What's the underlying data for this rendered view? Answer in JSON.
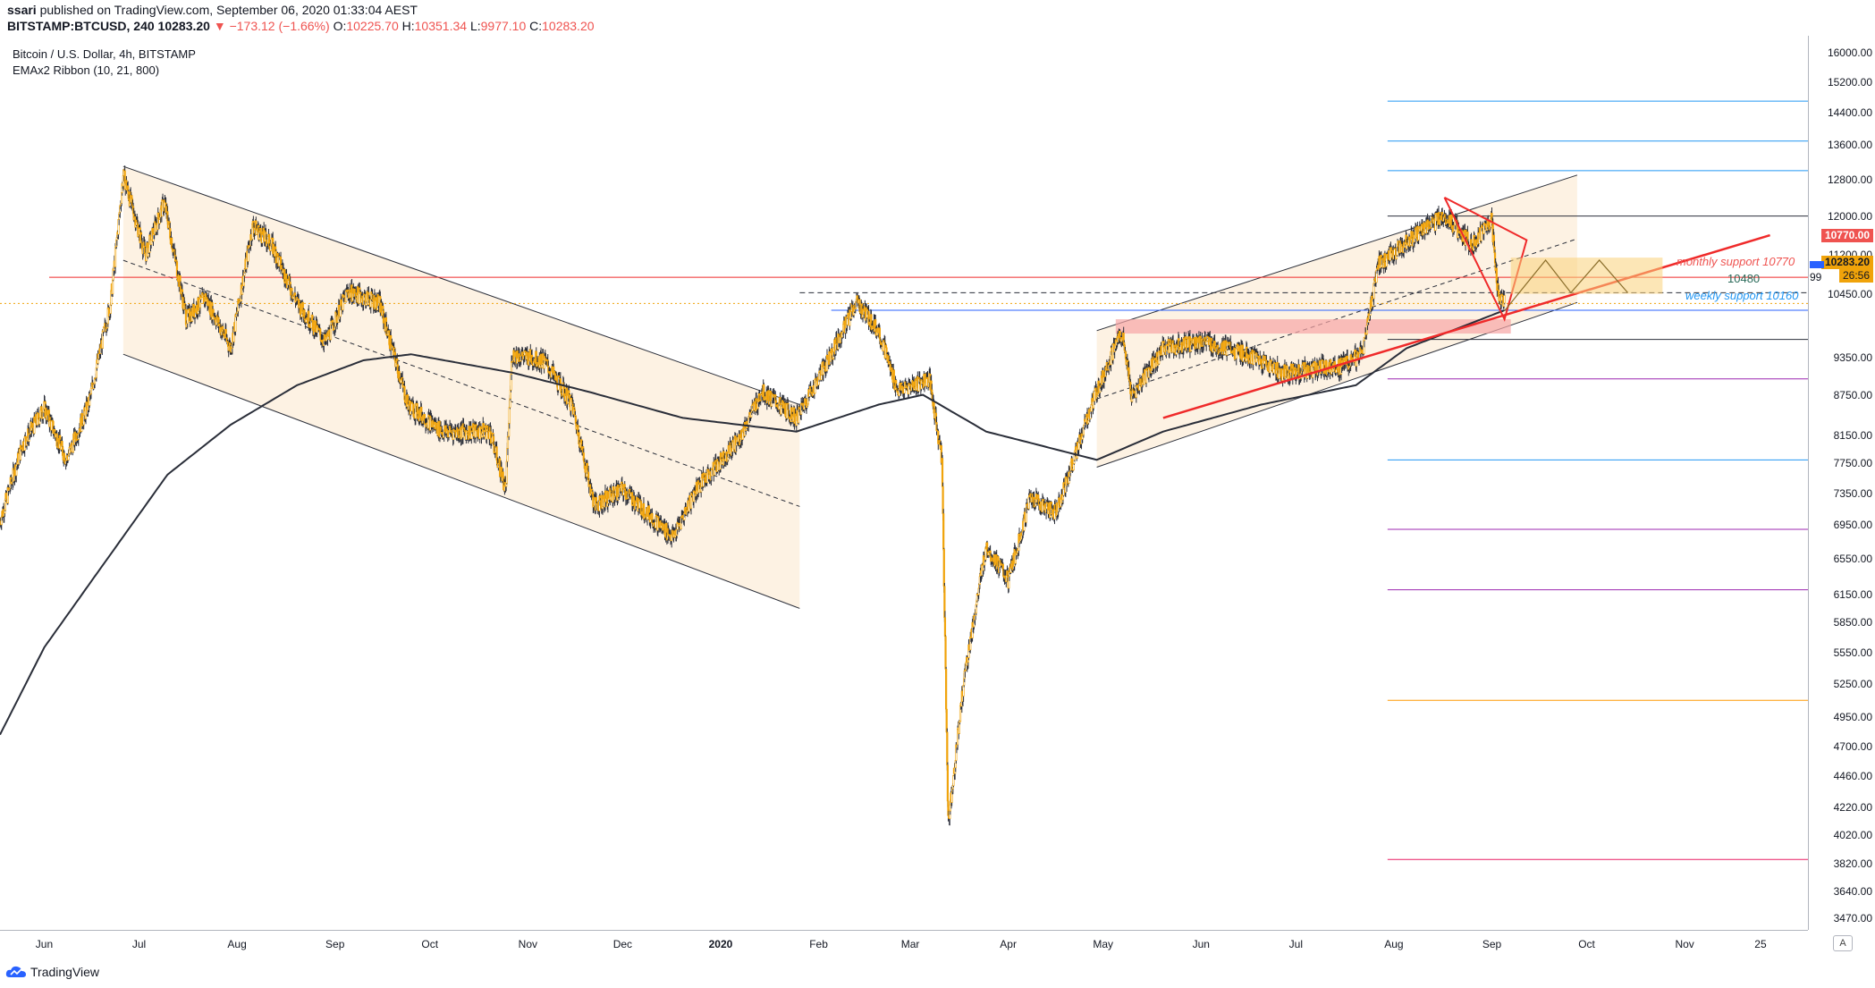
{
  "header": {
    "publisher": "ssari",
    "published_text": "published on TradingView.com, September 06, 2020 01:33:04 AEST",
    "symbol": "BITSTAMP:BTCUSD, 240",
    "last": "10283.20",
    "change": "▼ −173.12 (−1.66%)",
    "open_label": "O:",
    "open": "10225.70",
    "high_label": "H:",
    "high": "10351.34",
    "low_label": "L:",
    "low": "9977.10",
    "close_label": "C:",
    "close": "10283.20"
  },
  "legend": {
    "title": "Bitcoin / U.S. Dollar, 4h, BITSTAMP",
    "indicator": "EMAx2 Ribbon (10, 21, 800)"
  },
  "footer": {
    "brand": "TradingView",
    "auto_button": "A"
  },
  "price_tags": {
    "monthly": "10770.00",
    "last": "10283.20",
    "countdown": "26:56",
    "partial": "99"
  },
  "annotations": {
    "monthly_support": "monthly support 10770",
    "level_10480": "10480",
    "weekly_support": "weekly support 10160"
  },
  "colors": {
    "candle": "#f0a30a",
    "wick": "#2a2e39",
    "ema": "#2a2e39",
    "red": "#ef2a2a",
    "channel_fill": "#fdf2e3",
    "range_fill": "#f9d27a"
  },
  "chart_data": {
    "type": "candlestick",
    "title": "Bitcoin / U.S. Dollar, 4h, BITSTAMP",
    "y_scale": "log",
    "ylim": [
      3400,
      16500
    ],
    "y_ticks": [
      16000,
      15200,
      14400,
      13600,
      12800,
      12000,
      11200,
      10450,
      9350,
      8750,
      8150,
      7750,
      7350,
      6950,
      6550,
      6150,
      5850,
      5550,
      5250,
      4950,
      4700,
      4460,
      4220,
      4020,
      3820,
      3640,
      3470
    ],
    "x_ticks": [
      "Jun",
      "Jul",
      "Aug",
      "Sep",
      "Oct",
      "Nov",
      "Dec",
      "2020",
      "Feb",
      "Mar",
      "Apr",
      "May",
      "Jun",
      "Jul",
      "Aug",
      "Sep",
      "Oct",
      "Nov",
      "25"
    ],
    "bold_ticks": [
      "2020"
    ],
    "date_range": [
      "2019-05-18",
      "2020-12-10"
    ],
    "price_path": [
      [
        "2019-05-18",
        7000
      ],
      [
        "2019-05-25",
        8000
      ],
      [
        "2019-06-01",
        8550
      ],
      [
        "2019-06-08",
        7800
      ],
      [
        "2019-06-15",
        8600
      ],
      [
        "2019-06-22",
        10300
      ],
      [
        "2019-06-26",
        12900
      ],
      [
        "2019-07-03",
        11200
      ],
      [
        "2019-07-09",
        12300
      ],
      [
        "2019-07-16",
        10000
      ],
      [
        "2019-07-22",
        10400
      ],
      [
        "2019-07-30",
        9500
      ],
      [
        "2019-08-06",
        11800
      ],
      [
        "2019-08-12",
        11400
      ],
      [
        "2019-08-20",
        10300
      ],
      [
        "2019-08-29",
        9600
      ],
      [
        "2019-09-05",
        10500
      ],
      [
        "2019-09-15",
        10300
      ],
      [
        "2019-09-24",
        8600
      ],
      [
        "2019-10-05",
        8200
      ],
      [
        "2019-10-20",
        8200
      ],
      [
        "2019-10-25",
        7400
      ],
      [
        "2019-10-27",
        9400
      ],
      [
        "2019-11-06",
        9300
      ],
      [
        "2019-11-15",
        8600
      ],
      [
        "2019-11-22",
        7200
      ],
      [
        "2019-12-01",
        7400
      ],
      [
        "2019-12-17",
        6800
      ],
      [
        "2019-12-24",
        7400
      ],
      [
        "2020-01-07",
        8100
      ],
      [
        "2020-01-14",
        8800
      ],
      [
        "2020-01-25",
        8400
      ],
      [
        "2020-02-04",
        9300
      ],
      [
        "2020-02-13",
        10300
      ],
      [
        "2020-02-20",
        9800
      ],
      [
        "2020-02-26",
        8800
      ],
      [
        "2020-03-07",
        9000
      ],
      [
        "2020-03-11",
        7800
      ],
      [
        "2020-03-13",
        4100
      ],
      [
        "2020-03-18",
        5300
      ],
      [
        "2020-03-25",
        6700
      ],
      [
        "2020-04-01",
        6300
      ],
      [
        "2020-04-08",
        7300
      ],
      [
        "2020-04-16",
        7100
      ],
      [
        "2020-04-29",
        8800
      ],
      [
        "2020-05-07",
        9800
      ],
      [
        "2020-05-10",
        8700
      ],
      [
        "2020-05-20",
        9500
      ],
      [
        "2020-06-01",
        9600
      ],
      [
        "2020-06-15",
        9400
      ],
      [
        "2020-06-27",
        9100
      ],
      [
        "2020-07-15",
        9200
      ],
      [
        "2020-07-22",
        9400
      ],
      [
        "2020-07-27",
        11000
      ],
      [
        "2020-08-02",
        11300
      ],
      [
        "2020-08-10",
        11700
      ],
      [
        "2020-08-17",
        12000
      ],
      [
        "2020-08-26",
        11400
      ],
      [
        "2020-09-01",
        11900
      ],
      [
        "2020-09-03",
        10400
      ],
      [
        "2020-09-05",
        10283
      ]
    ],
    "ema_800": [
      [
        "2019-05-18",
        4800
      ],
      [
        "2019-06-01",
        5600
      ],
      [
        "2019-06-20",
        6500
      ],
      [
        "2019-07-10",
        7600
      ],
      [
        "2019-07-30",
        8300
      ],
      [
        "2019-08-20",
        8900
      ],
      [
        "2019-09-10",
        9300
      ],
      [
        "2019-09-25",
        9400
      ],
      [
        "2019-10-27",
        9100
      ],
      [
        "2019-11-20",
        8800
      ],
      [
        "2019-12-20",
        8400
      ],
      [
        "2020-01-25",
        8200
      ],
      [
        "2020-02-20",
        8600
      ],
      [
        "2020-03-05",
        8750
      ],
      [
        "2020-03-25",
        8200
      ],
      [
        "2020-04-29",
        7800
      ],
      [
        "2020-05-20",
        8200
      ],
      [
        "2020-06-20",
        8600
      ],
      [
        "2020-07-20",
        8900
      ],
      [
        "2020-08-05",
        9500
      ],
      [
        "2020-09-05",
        10160
      ]
    ],
    "levels": [
      {
        "price": 14700,
        "color": "#2196f3"
      },
      {
        "price": 13700,
        "color": "#2196f3"
      },
      {
        "price": 13000,
        "color": "#2196f3"
      },
      {
        "price": 12000,
        "color": "#2a2e39"
      },
      {
        "price": 10770,
        "color": "#ef2a2a",
        "label": "monthly support 10770"
      },
      {
        "price": 10480,
        "color": "#2a2e39",
        "label": "10480"
      },
      {
        "price": 10160,
        "color": "#2962ff",
        "label": "weekly support 10160"
      },
      {
        "price": 9650,
        "color": "#2a2e39"
      },
      {
        "price": 9000,
        "color": "#9c27b0"
      },
      {
        "price": 7800,
        "color": "#2196f3"
      },
      {
        "price": 6900,
        "color": "#9c27b0"
      },
      {
        "price": 6200,
        "color": "#9c27b0"
      },
      {
        "price": 5100,
        "color": "#ff9800"
      },
      {
        "price": 3850,
        "color": "#e91e63"
      }
    ]
  }
}
